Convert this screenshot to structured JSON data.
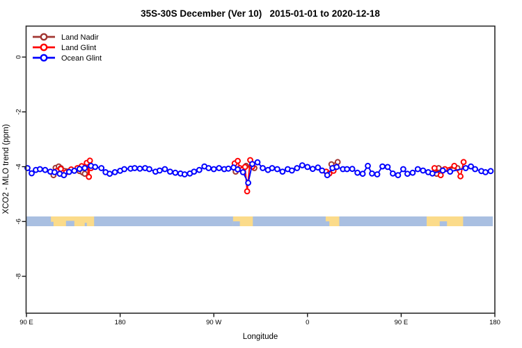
{
  "title": "35S-30S December (Ver 10)   2015-01-01 to 2020-12-18",
  "legend": {
    "position": "top-left",
    "items": [
      {
        "label": "Land Nadir",
        "color": "#A13632"
      },
      {
        "label": "Land Glint",
        "color": "#FF0000"
      },
      {
        "label": "Ocean Glint",
        "color": "#0000FF"
      }
    ]
  },
  "chart_data": {
    "type": "line",
    "subtype": "lines-with-open-circle-markers",
    "title": "35S-30S December (Ver 10)   2015-01-01 to 2020-12-18",
    "xlabel": "Longitude",
    "ylabel": "XCO2 - MLO trend (ppm)",
    "x_axis": {
      "description": "longitude axis starting at 90E going eastward, wrapping through 180, 90W, 0, 90E to 180; positions are degrees east of 90E",
      "range_deg": [
        0,
        450
      ],
      "ticks": [
        {
          "deg": 0,
          "label": "90 E"
        },
        {
          "deg": 90,
          "label": "180"
        },
        {
          "deg": 180,
          "label": "90 W"
        },
        {
          "deg": 270,
          "label": "0"
        },
        {
          "deg": 360,
          "label": "90 E"
        },
        {
          "deg": 450,
          "label": "180"
        }
      ]
    },
    "y_axis": {
      "range": [
        1.1,
        -9.3
      ],
      "ticks": [
        {
          "val": 0,
          "label": "0"
        },
        {
          "val": -2,
          "label": "-2"
        },
        {
          "val": -4,
          "label": "-4"
        },
        {
          "val": -6,
          "label": "-6"
        },
        {
          "val": -8,
          "label": "-8"
        }
      ]
    },
    "grid": false,
    "legend_position": "top-left-inside",
    "series": [
      {
        "name": "Land Nadir",
        "color": "#A13632",
        "marker": "open-circle",
        "segments": [
          [
            [
              26,
              -4.31
            ],
            [
              28,
              -4.04
            ],
            [
              31,
              -3.99
            ],
            [
              33,
              -4.05
            ],
            [
              51,
              -4.16
            ],
            [
              54,
              -4.21
            ],
            [
              56,
              -4.26
            ]
          ],
          [
            [
              201,
              -4.18
            ],
            [
              211,
              -3.97
            ],
            [
              219,
              -4.05
            ]
          ],
          [
            [
              293,
              -3.91
            ],
            [
              299,
              -3.83
            ]
          ],
          [
            [
              394,
              -4.26
            ],
            [
              396,
              -4.05
            ],
            [
              414,
              -4.05
            ]
          ]
        ]
      },
      {
        "name": "Land Glint",
        "color": "#FF0000",
        "marker": "open-circle",
        "segments": [
          [
            [
              29,
              -4.16
            ],
            [
              33,
              -4.08
            ],
            [
              38,
              -4.21
            ],
            [
              43,
              -4.1
            ],
            [
              49,
              -4.05
            ],
            [
              53,
              -3.98
            ],
            [
              58,
              -3.86
            ],
            [
              60,
              -4.37
            ],
            [
              61,
              -3.78
            ],
            [
              62,
              -4.05
            ]
          ],
          [
            [
              200,
              -3.88
            ],
            [
              203,
              -3.79
            ],
            [
              205,
              -4.05
            ],
            [
              207,
              -4.12
            ],
            [
              210,
              -4.01
            ],
            [
              212,
              -4.9
            ],
            [
              215,
              -3.76
            ],
            [
              217,
              -4.0
            ]
          ],
          [
            [
              288,
              -4.18
            ],
            [
              291,
              -4.25
            ],
            [
              295,
              -4.15
            ]
          ],
          [
            [
              392,
              -4.05
            ],
            [
              398,
              -4.31
            ],
            [
              402,
              -4.09
            ],
            [
              411,
              -3.97
            ],
            [
              417,
              -4.35
            ],
            [
              420,
              -3.83
            ]
          ]
        ]
      },
      {
        "name": "Ocean Glint",
        "color": "#0000FF",
        "marker": "open-circle",
        "segments": [
          [
            [
              1,
              -4.05
            ],
            [
              5,
              -4.24
            ],
            [
              9,
              -4.12
            ],
            [
              13,
              -4.09
            ],
            [
              18,
              -4.12
            ],
            [
              23,
              -4.18
            ],
            [
              27,
              -4.2
            ],
            [
              32,
              -4.26
            ],
            [
              36,
              -4.31
            ],
            [
              41,
              -4.19
            ],
            [
              46,
              -4.15
            ],
            [
              51,
              -4.08
            ],
            [
              56,
              -4.05
            ],
            [
              62,
              -3.97
            ],
            [
              66,
              -4.01
            ],
            [
              72,
              -4.05
            ],
            [
              76,
              -4.2
            ],
            [
              80,
              -4.26
            ],
            [
              85,
              -4.2
            ],
            [
              90,
              -4.15
            ],
            [
              94,
              -4.09
            ],
            [
              100,
              -4.07
            ],
            [
              104,
              -4.05
            ],
            [
              109,
              -4.07
            ],
            [
              114,
              -4.05
            ],
            [
              118,
              -4.09
            ],
            [
              124,
              -4.18
            ],
            [
              128,
              -4.14
            ],
            [
              133,
              -4.09
            ],
            [
              138,
              -4.18
            ],
            [
              143,
              -4.22
            ],
            [
              148,
              -4.25
            ],
            [
              152,
              -4.28
            ],
            [
              157,
              -4.25
            ],
            [
              161,
              -4.18
            ],
            [
              166,
              -4.12
            ],
            [
              171,
              -3.99
            ],
            [
              175,
              -4.05
            ],
            [
              180,
              -4.09
            ],
            [
              185,
              -4.05
            ],
            [
              190,
              -4.09
            ],
            [
              194,
              -4.07
            ],
            [
              199,
              -4.03
            ],
            [
              203,
              -4.1
            ],
            [
              208,
              -4.2
            ],
            [
              213,
              -4.59
            ],
            [
              217,
              -3.9
            ],
            [
              222,
              -3.84
            ],
            [
              227,
              -4.05
            ],
            [
              232,
              -4.12
            ],
            [
              236,
              -4.05
            ],
            [
              241,
              -4.09
            ],
            [
              246,
              -4.18
            ],
            [
              251,
              -4.09
            ],
            [
              255,
              -4.14
            ],
            [
              260,
              -4.05
            ],
            [
              265,
              -3.95
            ],
            [
              270,
              -4.01
            ],
            [
              275,
              -4.08
            ],
            [
              280,
              -4.03
            ],
            [
              284,
              -4.14
            ],
            [
              289,
              -4.31
            ],
            [
              294,
              -4.05
            ],
            [
              298,
              -4.01
            ],
            [
              304,
              -4.09
            ],
            [
              308,
              -4.09
            ],
            [
              313,
              -4.08
            ],
            [
              318,
              -4.22
            ],
            [
              323,
              -4.26
            ],
            [
              328,
              -3.97
            ],
            [
              332,
              -4.25
            ],
            [
              337,
              -4.28
            ],
            [
              342,
              -3.99
            ],
            [
              347,
              -4.01
            ],
            [
              352,
              -4.25
            ],
            [
              357,
              -4.31
            ],
            [
              362,
              -4.09
            ],
            [
              366,
              -4.26
            ],
            [
              371,
              -4.22
            ],
            [
              376,
              -4.09
            ],
            [
              381,
              -4.14
            ],
            [
              386,
              -4.2
            ],
            [
              390,
              -4.25
            ],
            [
              400,
              -4.14
            ],
            [
              407,
              -4.18
            ],
            [
              422,
              -4.05
            ],
            [
              427,
              -3.99
            ],
            [
              431,
              -4.09
            ],
            [
              437,
              -4.16
            ],
            [
              441,
              -4.2
            ],
            [
              446,
              -4.16
            ]
          ]
        ]
      }
    ],
    "map_band": {
      "description": "land/ocean strip for the 35S-30S latitude band drawn across the plot",
      "ocean_color": "#A9BFE1",
      "land_color": "#FBDB8A",
      "extent_deg": [
        0,
        448
      ],
      "value_range_ppm": [
        -5.82,
        -6.17
      ],
      "land_patches": [
        {
          "name": "australia-west-copy",
          "from": 23.5,
          "to": 65,
          "notches": [
            {
              "from": 23.5,
              "to": 26,
              "depth": 0.45
            },
            {
              "from": 38,
              "to": 46,
              "depth": 0.55
            },
            {
              "from": 56,
              "to": 58,
              "depth": 0.35
            }
          ]
        },
        {
          "name": "south-america",
          "from": 198.5,
          "to": 217.5,
          "notches": [
            {
              "from": 198.5,
              "to": 205,
              "depth": 0.5
            }
          ]
        },
        {
          "name": "south-africa",
          "from": 287.5,
          "to": 300.5,
          "notches": [
            {
              "from": 287.5,
              "to": 291,
              "depth": 0.5
            }
          ]
        },
        {
          "name": "australia-east-copy",
          "from": 384.5,
          "to": 419.5,
          "notches": [
            {
              "from": 397,
              "to": 404,
              "depth": 0.5
            }
          ]
        }
      ]
    }
  }
}
